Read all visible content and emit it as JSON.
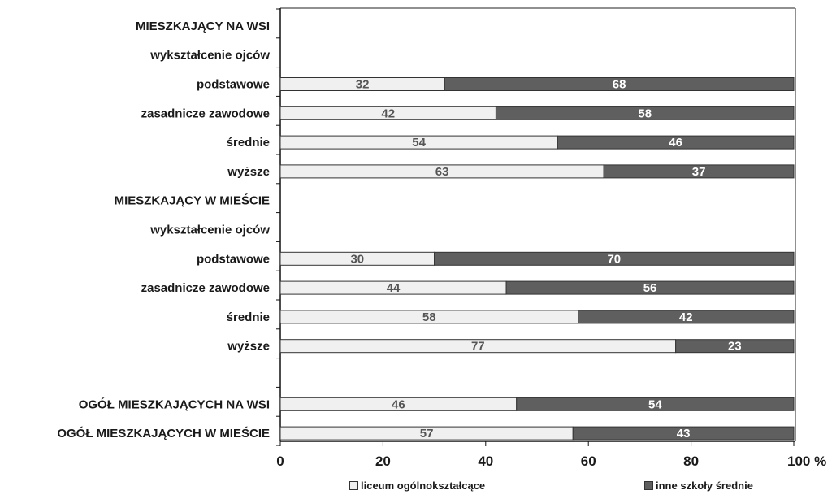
{
  "chart_data": {
    "type": "bar",
    "orientation": "horizontal",
    "stacked": true,
    "categories": [
      "MIESZKAJĄCY NA WSI",
      "wykształcenie ojców",
      "podstawowe",
      "zasadnicze zawodowe",
      "średnie",
      "wyższe",
      "MIESZKAJĄCY W MIEŚCIE",
      "wykształcenie ojców",
      "podstawowe",
      "zasadnicze zawodowe",
      "średnie",
      "wyższe",
      "",
      "OGÓŁ MIESZKAJĄCYCH NA WSI",
      "OGÓŁ MIESZKAJĄCYCH W MIEŚCIE"
    ],
    "series": [
      {
        "name": "liceum ogólnokształcące",
        "color": "#f0f0f0",
        "values": [
          null,
          null,
          32,
          42,
          54,
          63,
          null,
          null,
          30,
          44,
          58,
          77,
          null,
          46,
          57
        ]
      },
      {
        "name": "inne szkoły średnie",
        "color": "#5f5f5f",
        "values": [
          null,
          null,
          68,
          58,
          46,
          37,
          null,
          null,
          70,
          56,
          42,
          23,
          null,
          54,
          43
        ]
      }
    ],
    "xlim": [
      0,
      100
    ],
    "x_ticks": [
      "0",
      "20",
      "40",
      "60",
      "80",
      "100 %"
    ],
    "legend_position": "bottom",
    "grid": false
  }
}
